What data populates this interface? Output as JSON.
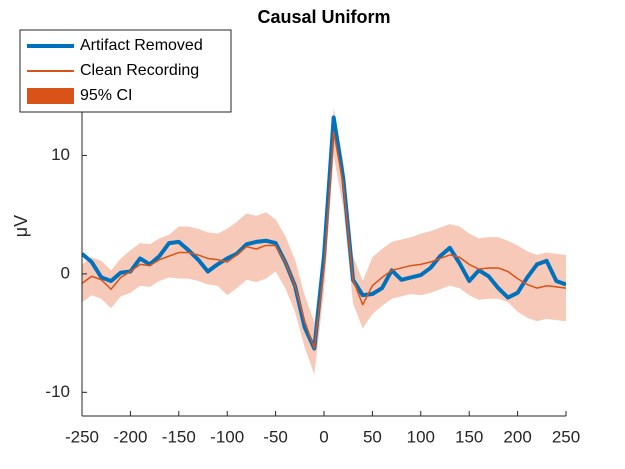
{
  "chart_data": {
    "type": "line",
    "title": "Causal Uniform",
    "ylabel": "μV",
    "x": [
      -250,
      -240,
      -230,
      -220,
      -210,
      -200,
      -190,
      -180,
      -170,
      -160,
      -150,
      -140,
      -130,
      -120,
      -110,
      -100,
      -90,
      -80,
      -70,
      -60,
      -50,
      -40,
      -30,
      -20,
      -10,
      0,
      10,
      20,
      30,
      40,
      50,
      60,
      70,
      80,
      90,
      100,
      110,
      120,
      130,
      140,
      150,
      160,
      170,
      180,
      190,
      200,
      210,
      220,
      230,
      240,
      250
    ],
    "series": [
      {
        "name": "Artifact Removed",
        "color": "#0072bd",
        "values": [
          1.7,
          1.0,
          -0.3,
          -0.6,
          0.1,
          0.2,
          1.3,
          0.8,
          1.5,
          2.6,
          2.7,
          2.0,
          1.2,
          0.2,
          0.8,
          1.3,
          1.7,
          2.5,
          2.7,
          2.8,
          2.6,
          1.0,
          -1.0,
          -4.5,
          -6.3,
          1.5,
          13.2,
          8.0,
          -0.5,
          -1.8,
          -1.7,
          -1.2,
          0.3,
          -0.5,
          -0.3,
          -0.1,
          0.5,
          1.5,
          2.2,
          0.9,
          -0.6,
          0.3,
          -0.2,
          -1.2,
          -2.0,
          -1.6,
          -0.3,
          0.8,
          1.1,
          -0.6,
          -0.9
        ]
      },
      {
        "name": "Clean Recording",
        "color": "#d95319",
        "values": [
          -0.8,
          -0.2,
          -0.5,
          -1.3,
          -0.3,
          0.2,
          0.8,
          0.7,
          1.2,
          1.5,
          1.8,
          1.8,
          1.6,
          1.3,
          1.2,
          1.0,
          1.6,
          2.3,
          2.1,
          2.4,
          2.4,
          1.0,
          -1.0,
          -4.0,
          -6.3,
          0.5,
          12.0,
          7.5,
          -0.5,
          -2.6,
          -1.0,
          -0.3,
          0.3,
          0.5,
          0.7,
          0.8,
          1.0,
          1.3,
          1.6,
          1.4,
          0.8,
          0.4,
          0.5,
          0.5,
          0.2,
          -0.4,
          -0.9,
          -1.2,
          -1.0,
          -1.1,
          -1.2
        ]
      },
      {
        "name": "95% CI",
        "color": "#f7c9b8",
        "legend_color": "#d95319",
        "upper": [
          0.8,
          1.4,
          1.1,
          0.3,
          1.3,
          2.0,
          2.6,
          2.5,
          3.0,
          3.3,
          4.0,
          4.0,
          3.8,
          3.5,
          3.4,
          3.8,
          4.4,
          5.1,
          4.9,
          5.2,
          4.6,
          3.2,
          1.2,
          -1.8,
          -4.1,
          2.5,
          14.0,
          9.5,
          1.5,
          -0.6,
          1.4,
          2.1,
          2.7,
          2.9,
          3.1,
          3.4,
          3.6,
          3.9,
          4.2,
          4.0,
          3.4,
          3.0,
          3.1,
          3.1,
          2.8,
          2.4,
          1.9,
          1.6,
          1.8,
          1.7,
          1.6
        ],
        "lower": [
          -2.4,
          -1.8,
          -2.1,
          -2.9,
          -1.9,
          -1.6,
          -1.0,
          -1.1,
          -0.6,
          -0.3,
          -0.4,
          -0.4,
          -0.6,
          -0.9,
          -1.0,
          -1.8,
          -1.2,
          -0.5,
          -0.7,
          -0.4,
          0.2,
          -1.2,
          -3.2,
          -6.2,
          -8.5,
          -1.5,
          10.0,
          5.5,
          -2.5,
          -4.6,
          -3.4,
          -2.7,
          -2.1,
          -1.9,
          -1.7,
          -1.8,
          -1.6,
          -1.3,
          -1.0,
          -1.2,
          -1.8,
          -2.2,
          -2.1,
          -2.1,
          -2.4,
          -3.2,
          -3.7,
          -4.0,
          -3.8,
          -3.9,
          -4.0
        ]
      }
    ],
    "xlim": [
      -250,
      250
    ],
    "ylim": [
      -12,
      20
    ],
    "xticks": [
      -250,
      -200,
      -150,
      -100,
      -50,
      0,
      50,
      100,
      150,
      200,
      250
    ],
    "yticks": [
      -10,
      0,
      10
    ],
    "legend": "northwest"
  }
}
